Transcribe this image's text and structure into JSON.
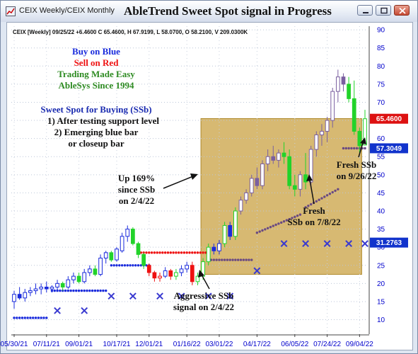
{
  "window": {
    "title": "CEIX Weekly/CEIX Monthly",
    "headline": "AbleTrend Sweet Spot signal in Progress"
  },
  "chart_data": {
    "type": "candlestick",
    "info_line": "CEIX [Weekly] 09/25/22 +6.4600 C 65.4600, H 67.9199, L 58.0700, O 58.2100, V 209.0300K",
    "ylim": [
      6,
      91
    ],
    "y_ticks": [
      10,
      15,
      20,
      25,
      30,
      35,
      40,
      45,
      50,
      55,
      60,
      65,
      70,
      75,
      80,
      85,
      90
    ],
    "x_ticks": [
      "05/30/21",
      "07/11/21",
      "09/01/21",
      "10/17/21",
      "12/01/21",
      "01/16/22",
      "03/01/22",
      "04/17/22",
      "06/05/22",
      "07/24/22",
      "09/04/22"
    ],
    "price_flags": [
      {
        "label": "65.4600",
        "value": 65.46,
        "color": "#dd1111"
      },
      {
        "label": "57.3049",
        "value": 57.3049,
        "color": "#1133cc"
      },
      {
        "label": "31.2763",
        "value": 31.2763,
        "color": "#1133cc"
      }
    ],
    "zone": {
      "x_start": 35,
      "x_end": 64,
      "y_low": 22.5,
      "y_high": 65.5,
      "color": "#cca54a"
    },
    "bars": [
      {
        "x": 0,
        "o": 15,
        "h": 18,
        "l": 13,
        "c": 17,
        "col": "b"
      },
      {
        "x": 1,
        "o": 17,
        "h": 19,
        "l": 15.5,
        "c": 16,
        "col": "b"
      },
      {
        "x": 2,
        "o": 16,
        "h": 18.5,
        "l": 15,
        "c": 17.5,
        "col": "b"
      },
      {
        "x": 3,
        "o": 17.5,
        "h": 19,
        "l": 16.5,
        "c": 18,
        "col": "b"
      },
      {
        "x": 4,
        "o": 18,
        "h": 20,
        "l": 17,
        "c": 18.5,
        "col": "b"
      },
      {
        "x": 5,
        "o": 18.5,
        "h": 20,
        "l": 17,
        "c": 19,
        "col": "b"
      },
      {
        "x": 6,
        "o": 19,
        "h": 20.5,
        "l": 17.5,
        "c": 18.5,
        "col": "b"
      },
      {
        "x": 7,
        "o": 18.5,
        "h": 19.5,
        "l": 17.5,
        "c": 19,
        "col": "b"
      },
      {
        "x": 8,
        "o": 19,
        "h": 21,
        "l": 18,
        "c": 20,
        "col": "b"
      },
      {
        "x": 9,
        "o": 20,
        "h": 20.5,
        "l": 18,
        "c": 19,
        "col": "g"
      },
      {
        "x": 10,
        "o": 19,
        "h": 22,
        "l": 18.5,
        "c": 21,
        "col": "b"
      },
      {
        "x": 11,
        "o": 21,
        "h": 23,
        "l": 20,
        "c": 22,
        "col": "b"
      },
      {
        "x": 12,
        "o": 22,
        "h": 23,
        "l": 20,
        "c": 20.5,
        "col": "g"
      },
      {
        "x": 13,
        "o": 20.5,
        "h": 24,
        "l": 20,
        "c": 23,
        "col": "b"
      },
      {
        "x": 14,
        "o": 23,
        "h": 25,
        "l": 22,
        "c": 24,
        "col": "b"
      },
      {
        "x": 15,
        "o": 24,
        "h": 25,
        "l": 22,
        "c": 22.5,
        "col": "g"
      },
      {
        "x": 16,
        "o": 22.5,
        "h": 28,
        "l": 22,
        "c": 27,
        "col": "b"
      },
      {
        "x": 17,
        "o": 27,
        "h": 29,
        "l": 25.5,
        "c": 28.5,
        "col": "b"
      },
      {
        "x": 18,
        "o": 28.5,
        "h": 29,
        "l": 26,
        "c": 26.5,
        "col": "g"
      },
      {
        "x": 19,
        "o": 26.5,
        "h": 30,
        "l": 26,
        "c": 29.5,
        "col": "b"
      },
      {
        "x": 20,
        "o": 29,
        "h": 34,
        "l": 28.5,
        "c": 33,
        "col": "b"
      },
      {
        "x": 21,
        "o": 33,
        "h": 36,
        "l": 31.5,
        "c": 35,
        "col": "b"
      },
      {
        "x": 22,
        "o": 35,
        "h": 35.5,
        "l": 30.5,
        "c": 31,
        "col": "g"
      },
      {
        "x": 23,
        "o": 31,
        "h": 31.5,
        "l": 27,
        "c": 28,
        "col": "g"
      },
      {
        "x": 24,
        "o": 28,
        "h": 28.5,
        "l": 24,
        "c": 25,
        "col": "g"
      },
      {
        "x": 25,
        "o": 25,
        "h": 25.5,
        "l": 22,
        "c": 23,
        "col": "r"
      },
      {
        "x": 26,
        "o": 23,
        "h": 23.5,
        "l": 20.5,
        "c": 21.5,
        "col": "r"
      },
      {
        "x": 27,
        "o": 21.5,
        "h": 23,
        "l": 20.5,
        "c": 22,
        "col": "r"
      },
      {
        "x": 28,
        "o": 22,
        "h": 24.5,
        "l": 21.5,
        "c": 23.5,
        "col": "b"
      },
      {
        "x": 29,
        "o": 23.5,
        "h": 24,
        "l": 21,
        "c": 22,
        "col": "r"
      },
      {
        "x": 30,
        "o": 22,
        "h": 24,
        "l": 21,
        "c": 23,
        "col": "g"
      },
      {
        "x": 31,
        "o": 23,
        "h": 25,
        "l": 22,
        "c": 24,
        "col": "b"
      },
      {
        "x": 32,
        "o": 24,
        "h": 26,
        "l": 23,
        "c": 25,
        "col": "b"
      },
      {
        "x": 33,
        "o": 25,
        "h": 26,
        "l": 19.5,
        "c": 20.5,
        "col": "r"
      },
      {
        "x": 34,
        "o": 20.5,
        "h": 23,
        "l": 19.5,
        "c": 22,
        "col": "g"
      },
      {
        "x": 35,
        "o": 22,
        "h": 27,
        "l": 21,
        "c": 26,
        "col": "g"
      },
      {
        "x": 36,
        "o": 26,
        "h": 31,
        "l": 25,
        "c": 30,
        "col": "g"
      },
      {
        "x": 37,
        "o": 30,
        "h": 31,
        "l": 28,
        "c": 29,
        "col": "b"
      },
      {
        "x": 38,
        "o": 29,
        "h": 32,
        "l": 28,
        "c": 31,
        "col": "b"
      },
      {
        "x": 39,
        "o": 31,
        "h": 37,
        "l": 30,
        "c": 36,
        "col": "g"
      },
      {
        "x": 40,
        "o": 36,
        "h": 37,
        "l": 32,
        "c": 33,
        "col": "b"
      },
      {
        "x": 41,
        "o": 33,
        "h": 41,
        "l": 32,
        "c": 40,
        "col": "g"
      },
      {
        "x": 42,
        "o": 40,
        "h": 44,
        "l": 39,
        "c": 43,
        "col": "v"
      },
      {
        "x": 43,
        "o": 43,
        "h": 46,
        "l": 42,
        "c": 45,
        "col": "v"
      },
      {
        "x": 44,
        "o": 45,
        "h": 50,
        "l": 44,
        "c": 49,
        "col": "v"
      },
      {
        "x": 45,
        "o": 49,
        "h": 52,
        "l": 46,
        "c": 47,
        "col": "v"
      },
      {
        "x": 46,
        "o": 47,
        "h": 54,
        "l": 46,
        "c": 53,
        "col": "v"
      },
      {
        "x": 47,
        "o": 53,
        "h": 57,
        "l": 51,
        "c": 55,
        "col": "v"
      },
      {
        "x": 48,
        "o": 55,
        "h": 58,
        "l": 53,
        "c": 54,
        "col": "v"
      },
      {
        "x": 49,
        "o": 54,
        "h": 57,
        "l": 52,
        "c": 56,
        "col": "v"
      },
      {
        "x": 50,
        "o": 56,
        "h": 59,
        "l": 53,
        "c": 55,
        "col": "g"
      },
      {
        "x": 51,
        "o": 55,
        "h": 57,
        "l": 46,
        "c": 47,
        "col": "g"
      },
      {
        "x": 52,
        "o": 47,
        "h": 50,
        "l": 44,
        "c": 46,
        "col": "g"
      },
      {
        "x": 53,
        "o": 46,
        "h": 51,
        "l": 44,
        "c": 50,
        "col": "v"
      },
      {
        "x": 54,
        "o": 50,
        "h": 56,
        "l": 46,
        "c": 48,
        "col": "g"
      },
      {
        "x": 55,
        "o": 48,
        "h": 58,
        "l": 47,
        "c": 57,
        "col": "v"
      },
      {
        "x": 56,
        "o": 57,
        "h": 62,
        "l": 55,
        "c": 61,
        "col": "v"
      },
      {
        "x": 57,
        "o": 61,
        "h": 64,
        "l": 58,
        "c": 62,
        "col": "v"
      },
      {
        "x": 58,
        "o": 62,
        "h": 66,
        "l": 59,
        "c": 65,
        "col": "v"
      },
      {
        "x": 59,
        "o": 65,
        "h": 74,
        "l": 63,
        "c": 73,
        "col": "v"
      },
      {
        "x": 60,
        "o": 73,
        "h": 79,
        "l": 70,
        "c": 77,
        "col": "v"
      },
      {
        "x": 61,
        "o": 77,
        "h": 78,
        "l": 73,
        "c": 75,
        "col": "v"
      },
      {
        "x": 62,
        "o": 75,
        "h": 77,
        "l": 70,
        "c": 71,
        "col": "g"
      },
      {
        "x": 63,
        "o": 71,
        "h": 76,
        "l": 61,
        "c": 62,
        "col": "g"
      },
      {
        "x": 64,
        "o": 62,
        "h": 63,
        "l": 56,
        "c": 58,
        "col": "g"
      },
      {
        "x": 65,
        "o": 58.21,
        "h": 67.92,
        "l": 58.07,
        "c": 65.46,
        "col": "g"
      }
    ],
    "resistance_dots": [
      {
        "from": 23,
        "to": 36,
        "value": 28.5
      }
    ],
    "support_dots": [
      {
        "from": 0,
        "to": 6,
        "value": 10.5
      },
      {
        "from": 7,
        "to": 17,
        "value": 18
      },
      {
        "from": 18,
        "to": 25,
        "value": 25
      },
      {
        "from": 36,
        "to": 44,
        "value": 26.5
      },
      {
        "from": 45,
        "to": 53,
        "value": 34
      },
      {
        "from": 54,
        "to": 60,
        "value": 41
      },
      {
        "from": 61,
        "to": 65,
        "value": 57.3049
      }
    ],
    "x_marks": [
      {
        "x": 8,
        "value": 12.5
      },
      {
        "x": 13,
        "value": 12.5
      },
      {
        "x": 18,
        "value": 16.5
      },
      {
        "x": 22,
        "value": 16.5
      },
      {
        "x": 27,
        "value": 16.5
      },
      {
        "x": 31,
        "value": 16.5
      },
      {
        "x": 36,
        "value": 16.5
      },
      {
        "x": 40,
        "value": 16.5
      },
      {
        "x": 45,
        "value": 23.5
      },
      {
        "x": 50,
        "value": 31
      },
      {
        "x": 54,
        "value": 31
      },
      {
        "x": 58,
        "value": 31
      },
      {
        "x": 62,
        "value": 31
      },
      {
        "x": 65,
        "value": 31
      }
    ],
    "legend": {
      "buy": "Buy on Blue",
      "sell": "Sell on Red",
      "easy": "Trading Made Easy",
      "since": "AbleSys Since 1994"
    },
    "sweet_spot": {
      "title": "Sweet Spot for Buying (SSb)",
      "line1": "1) After testing support level",
      "line2": "2) Emerging blue bar",
      "line3": "or closeup bar"
    },
    "annotations": {
      "up1": "Up 169%",
      "up2": "since SSb",
      "up3": "on 2/4/22",
      "aggr1": "Aggressive SSb",
      "aggr2": "signal on 2/4/22",
      "fresh1_a": "Fresh",
      "fresh1_b": "SSb on 7/8/22",
      "fresh2_a": "Fresh SSb",
      "fresh2_b": "on 9/26/22"
    },
    "colors": {
      "blue_bar": "#1a2bdc",
      "green_bar": "#22d32a",
      "red_bar": "#ee1111",
      "purple_bar": "#7a5fa0",
      "support_dot": "#1a2bdc",
      "resistance_dot": "#ee1111",
      "trail_dot": "#6a4a82",
      "x_mark": "#3a3ad0",
      "legend_buy": "#1a2bdc",
      "legend_sell": "#ee1111",
      "legend_easy": "#2e8b22",
      "sweet_title": "#1a2bb0"
    }
  }
}
